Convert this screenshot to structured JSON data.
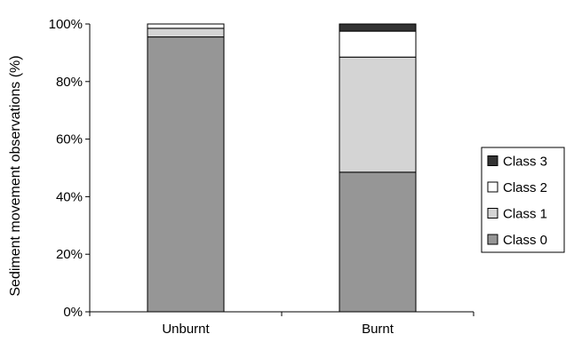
{
  "chart_data": {
    "type": "bar",
    "stacked": true,
    "categories": [
      "Unburnt",
      "Burnt"
    ],
    "series": [
      {
        "name": "Class 0",
        "values": [
          95.5,
          48.5
        ],
        "color": "#969696"
      },
      {
        "name": "Class 1",
        "values": [
          3.0,
          40.0
        ],
        "color": "#d4d4d4"
      },
      {
        "name": "Class 2",
        "values": [
          1.5,
          9.0
        ],
        "color": "#ffffff"
      },
      {
        "name": "Class 3",
        "values": [
          0.0,
          2.5
        ],
        "color": "#333333"
      }
    ],
    "ylabel": "Sediment movement observations (%)",
    "xlabel": "",
    "title": "",
    "ylim": [
      0,
      100
    ],
    "yticks": [
      "0%",
      "20%",
      "40%",
      "60%",
      "80%",
      "100%"
    ],
    "grid": false,
    "legend_position": "right",
    "legend_order": [
      "Class 3",
      "Class 2",
      "Class 1",
      "Class 0"
    ]
  }
}
